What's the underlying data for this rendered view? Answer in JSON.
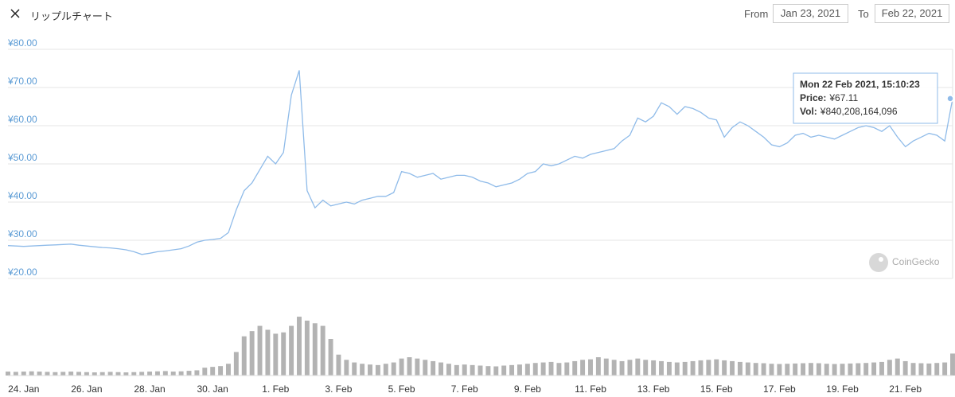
{
  "header": {
    "title": "リップルチャート",
    "from_label": "From",
    "from": "Jan 23, 2021",
    "to_label": "To",
    "to": "Feb 22, 2021"
  },
  "chart_data": {
    "type": "line",
    "categories": [
      null,
      null,
      "24. Jan",
      null,
      null,
      null,
      null,
      null,
      null,
      null,
      "26. Jan",
      null,
      null,
      null,
      null,
      null,
      null,
      null,
      "28. Jan",
      null,
      null,
      null,
      null,
      null,
      null,
      null,
      "30. Jan",
      null,
      null,
      null,
      null,
      null,
      null,
      null,
      "1. Feb",
      null,
      null,
      null,
      null,
      null,
      null,
      null,
      "3. Feb",
      null,
      null,
      null,
      null,
      null,
      null,
      null,
      "5. Feb",
      null,
      null,
      null,
      null,
      null,
      null,
      null,
      "7. Feb",
      null,
      null,
      null,
      null,
      null,
      null,
      null,
      "9. Feb",
      null,
      null,
      null,
      null,
      null,
      null,
      null,
      "11. Feb",
      null,
      null,
      null,
      null,
      null,
      null,
      null,
      "13. Feb",
      null,
      null,
      null,
      null,
      null,
      null,
      null,
      "15. Feb",
      null,
      null,
      null,
      null,
      null,
      null,
      null,
      "17. Feb",
      null,
      null,
      null,
      null,
      null,
      null,
      null,
      "19. Feb",
      null,
      null,
      null,
      null,
      null,
      null,
      null,
      "21. Feb",
      null,
      null,
      null,
      null,
      null,
      null
    ],
    "series": [
      {
        "type": "line",
        "color": "#8fbbe9",
        "values": [
          28.6,
          28.5,
          28.4,
          28.5,
          28.6,
          28.7,
          28.8,
          28.9,
          29.0,
          28.7,
          28.5,
          28.3,
          28.1,
          28.0,
          27.8,
          27.5,
          27.0,
          26.3,
          26.6,
          27.0,
          27.2,
          27.5,
          27.8,
          28.5,
          29.5,
          30.0,
          30.2,
          30.5,
          32.0,
          38.0,
          43.0,
          45.0,
          48.5,
          52.0,
          50.0,
          53.0,
          68.0,
          74.5,
          43.0,
          38.5,
          40.5,
          39.0,
          39.5,
          40.0,
          39.5,
          40.5,
          41.0,
          41.5,
          41.5,
          42.5,
          48.0,
          47.5,
          46.5,
          47.0,
          47.5,
          46.0,
          46.5,
          47.0,
          47.0,
          46.5,
          45.5,
          45.0,
          44.0,
          44.5,
          45.0,
          46.0,
          47.5,
          48.0,
          50.0,
          49.5,
          50.0,
          51.0,
          52.0,
          51.5,
          52.5,
          53.0,
          53.5,
          54.0,
          56.0,
          57.5,
          62.0,
          61.0,
          62.5,
          66.0,
          65.0,
          63.0,
          65.0,
          64.5,
          63.5,
          62.0,
          61.5,
          57.0,
          59.5,
          61.0,
          60.0,
          58.5,
          57.0,
          55.0,
          54.5,
          55.5,
          57.5,
          58.0,
          57.0,
          57.5,
          57.0,
          56.5,
          57.5,
          58.5,
          59.5,
          60.0,
          59.5,
          58.5,
          60.0,
          57.0,
          54.5,
          56.0,
          57.0,
          58.0,
          57.5,
          56.0,
          67.11
        ]
      },
      {
        "type": "bar",
        "axis": "y2",
        "color": "#9a9a9a",
        "values": [
          150000000000,
          140000000000,
          150000000000,
          160000000000,
          150000000000,
          140000000000,
          130000000000,
          140000000000,
          150000000000,
          140000000000,
          130000000000,
          120000000000,
          130000000000,
          140000000000,
          130000000000,
          120000000000,
          130000000000,
          140000000000,
          150000000000,
          160000000000,
          170000000000,
          150000000000,
          160000000000,
          180000000000,
          200000000000,
          300000000000,
          330000000000,
          360000000000,
          450000000000,
          900000000000,
          1500000000000,
          1700000000000,
          1900000000000,
          1750000000000,
          1600000000000,
          1650000000000,
          1900000000000,
          2250000000000,
          2100000000000,
          2000000000000,
          1900000000000,
          1400000000000,
          800000000000,
          600000000000,
          500000000000,
          450000000000,
          420000000000,
          400000000000,
          450000000000,
          500000000000,
          650000000000,
          700000000000,
          650000000000,
          600000000000,
          550000000000,
          500000000000,
          450000000000,
          400000000000,
          420000000000,
          400000000000,
          380000000000,
          360000000000,
          350000000000,
          380000000000,
          400000000000,
          420000000000,
          450000000000,
          480000000000,
          500000000000,
          520000000000,
          480000000000,
          500000000000,
          550000000000,
          600000000000,
          620000000000,
          700000000000,
          650000000000,
          600000000000,
          550000000000,
          600000000000,
          650000000000,
          600000000000,
          580000000000,
          550000000000,
          520000000000,
          500000000000,
          520000000000,
          550000000000,
          580000000000,
          600000000000,
          620000000000,
          580000000000,
          550000000000,
          520000000000,
          500000000000,
          480000000000,
          470000000000,
          450000000000,
          440000000000,
          450000000000,
          460000000000,
          470000000000,
          480000000000,
          470000000000,
          450000000000,
          440000000000,
          450000000000,
          460000000000,
          470000000000,
          480000000000,
          500000000000,
          520000000000,
          600000000000,
          650000000000,
          550000000000,
          480000000000,
          470000000000,
          460000000000,
          480000000000,
          500000000000,
          840208164096
        ]
      }
    ],
    "ylim": [
      20,
      80
    ],
    "yticks": [
      {
        "value": 20,
        "label": "¥20.00"
      },
      {
        "value": 30,
        "label": "¥30.00"
      },
      {
        "value": 40,
        "label": "¥40.00"
      },
      {
        "value": 50,
        "label": "¥50.00"
      },
      {
        "value": 60,
        "label": "¥60.00"
      },
      {
        "value": 70,
        "label": "¥70.00"
      },
      {
        "value": 80,
        "label": "¥80.00"
      }
    ],
    "y2lim": [
      0,
      2800000000000
    ],
    "grid": true,
    "tooltip": {
      "title": "Mon 22 Feb 2021, 15:10:23",
      "lines": [
        {
          "label": "Price:",
          "value": "¥67.11"
        },
        {
          "label": "Vol:",
          "value": "¥840,208,164,096"
        }
      ]
    },
    "watermark": "CoinGecko"
  }
}
